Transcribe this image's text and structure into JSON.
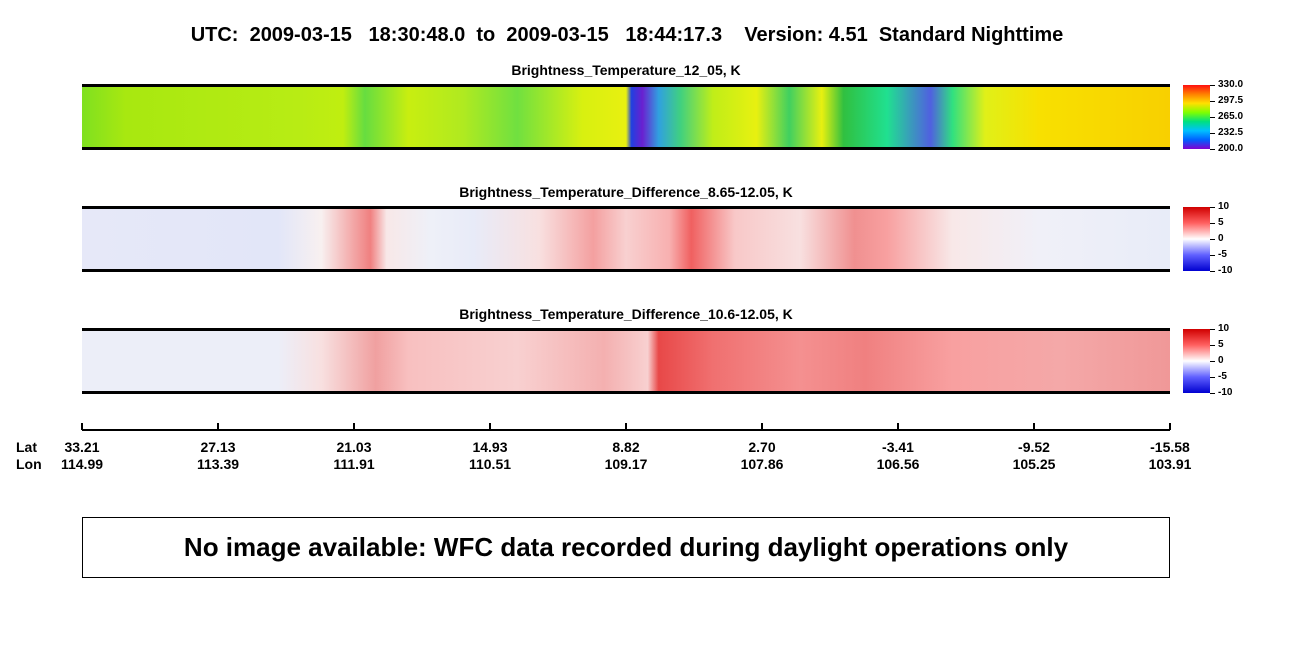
{
  "header": {
    "title": "UTC:  2009-03-15   18:30:48.0  to  2009-03-15   18:44:17.3    Version: 4.51  Standard Nighttime"
  },
  "panels": [
    {
      "title": "Brightness_Temperature_12_05, K",
      "colorbar": [
        "330.0",
        "297.5",
        "265.0",
        "232.5",
        "200.0"
      ]
    },
    {
      "title": "Brightness_Temperature_Difference_8.65-12.05, K",
      "colorbar": [
        "10",
        "5",
        "0",
        "-5",
        "-10"
      ]
    },
    {
      "title": "Brightness_Temperature_Difference_10.6-12.05, K",
      "colorbar": [
        "10",
        "5",
        "0",
        "-5",
        "-10"
      ]
    }
  ],
  "axis": {
    "lat_label": "Lat",
    "lon_label": "Lon",
    "lat": [
      "33.21",
      "27.13",
      "21.03",
      "14.93",
      "8.82",
      "2.70",
      "-3.41",
      "-9.52",
      "-15.58"
    ],
    "lon": [
      "114.99",
      "113.39",
      "111.91",
      "110.51",
      "109.17",
      "107.86",
      "106.56",
      "105.25",
      "103.91"
    ]
  },
  "message": "No image available: WFC data recorded during daylight operations only"
}
